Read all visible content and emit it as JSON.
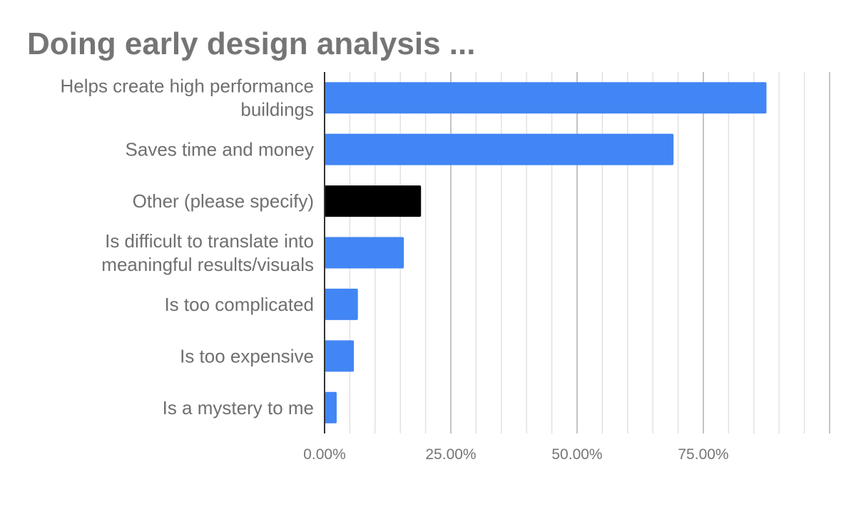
{
  "chart_data": {
    "type": "bar",
    "orientation": "horizontal",
    "title": "Doing early design analysis ...",
    "categories": [
      [
        "Helps create high performance",
        "buildings"
      ],
      [
        "Saves time and money"
      ],
      [
        "Other (please specify)"
      ],
      [
        "Is difficult to translate into",
        "meaningful results/visuals"
      ],
      [
        "Is too complicated"
      ],
      [
        "Is too expensive"
      ],
      [
        "Is a mystery to me"
      ]
    ],
    "values": [
      0.875,
      0.691,
      0.191,
      0.157,
      0.066,
      0.058,
      0.024
    ],
    "bar_colors": [
      "#4285f4",
      "#4285f4",
      "#000000",
      "#4285f4",
      "#4285f4",
      "#4285f4",
      "#4285f4"
    ],
    "xlim": [
      0,
      1
    ],
    "x_ticks": [
      0,
      0.25,
      0.5,
      0.75
    ],
    "x_tick_labels": [
      "0.00%",
      "25.00%",
      "50.00%",
      "75.00%"
    ],
    "minor_grid_step": 0.05,
    "grid": true,
    "legend": "none",
    "xlabel": "",
    "ylabel": ""
  }
}
